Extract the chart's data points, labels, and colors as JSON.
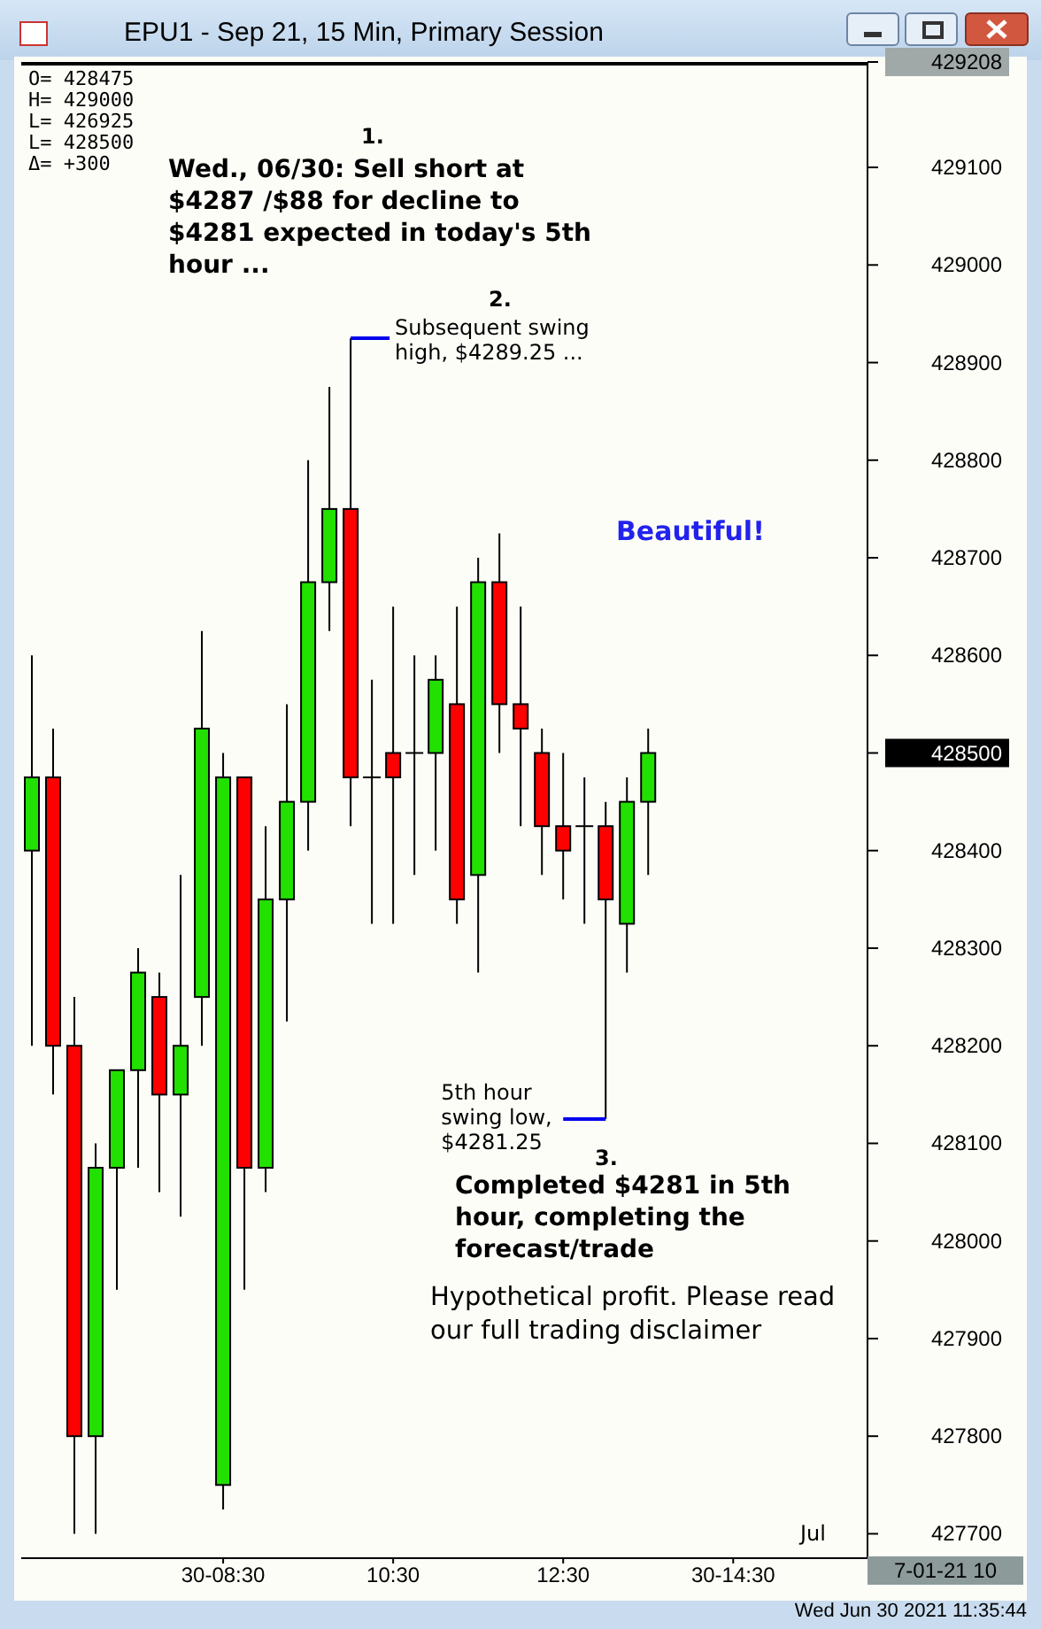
{
  "chart_data": {
    "type": "candlestick",
    "title": "EPU1 - Sep 21, 15 Min, Primary Session",
    "x": [
      6.25,
      6.5,
      6.75,
      7,
      7.25,
      7.5,
      7.75,
      8,
      8.25,
      8.5,
      8.75,
      9,
      9.25,
      9.5,
      9.75,
      10,
      10.25,
      10.5,
      10.75,
      11,
      11.25,
      11.5,
      11.75,
      12,
      12.25,
      12.5,
      12.75,
      13,
      13.25,
      13.5
    ],
    "ohlc": [
      [
        428400,
        428600,
        428200,
        428475
      ],
      [
        428475,
        428525,
        428150,
        428200
      ],
      [
        428200,
        428250,
        427700,
        427800
      ],
      [
        427800,
        428100,
        427700,
        428075
      ],
      [
        428075,
        428175,
        427950,
        428175
      ],
      [
        428175,
        428300,
        428075,
        428275
      ],
      [
        428250,
        428275,
        428050,
        428150
      ],
      [
        428150,
        428375,
        428025,
        428200
      ],
      [
        428250,
        428625,
        428200,
        428525
      ],
      [
        427750,
        428500,
        427725,
        428475
      ],
      [
        428475,
        428475,
        427950,
        428075
      ],
      [
        428075,
        428425,
        428050,
        428350
      ],
      [
        428350,
        428550,
        428225,
        428450
      ],
      [
        428450,
        428800,
        428400,
        428675
      ],
      [
        428675,
        428875,
        428625,
        428750
      ],
      [
        428750,
        428925,
        428425,
        428475
      ],
      [
        428475,
        428575,
        428325,
        428475
      ],
      [
        428500,
        428650,
        428325,
        428475
      ],
      [
        428500,
        428600,
        428375,
        428500
      ],
      [
        428500,
        428600,
        428400,
        428575
      ],
      [
        428550,
        428650,
        428325,
        428350
      ],
      [
        428375,
        428700,
        428275,
        428675
      ],
      [
        428675,
        428725,
        428500,
        428550
      ],
      [
        428550,
        428650,
        428425,
        428525
      ],
      [
        428500,
        428525,
        428375,
        428425
      ],
      [
        428425,
        428500,
        428350,
        428400
      ],
      [
        428425,
        428475,
        428325,
        428425
      ],
      [
        428425,
        428450,
        428125,
        428350
      ],
      [
        428325,
        428475,
        428275,
        428450
      ],
      [
        428450,
        428525,
        428375,
        428500
      ]
    ],
    "colors": [
      "#22e000",
      "#ff0000",
      "#ff0000",
      "#22e000",
      "#22e000",
      "#22e000",
      "#ff0000",
      "#22e000",
      "#22e000",
      "#22e000",
      "#ff0000",
      "#22e000",
      "#22e000",
      "#22e000",
      "#22e000",
      "#ff0000",
      "#000000",
      "#ff0000",
      "#000000",
      "#22e000",
      "#ff0000",
      "#22e000",
      "#ff0000",
      "#ff0000",
      "#ff0000",
      "#ff0000",
      "#000000",
      "#ff0000",
      "#22e000",
      "#22e000"
    ],
    "xlim": [
      6.125,
      16.08
    ],
    "xticks": [
      {
        "value": 8.5,
        "label": "30-08:30"
      },
      {
        "value": 10.5,
        "label": "10:30"
      },
      {
        "value": 12.5,
        "label": "12:30"
      },
      {
        "value": 14.5,
        "label": "30-14:30"
      }
    ],
    "ylim": [
      427675,
      429208
    ],
    "yticks": [
      427700,
      427800,
      427900,
      428000,
      428100,
      428200,
      428300,
      428400,
      428500,
      428600,
      428700,
      428800,
      428900,
      429000,
      429100,
      429208
    ],
    "annotations": [
      "O= 428475",
      "H= 429000",
      "L= 426925",
      "L= 428500",
      "Δ= +300",
      "1.",
      "Wed., 06/30: Sell short at $4287 /$88 for decline to $4281 expected in today's 5th hour ...",
      "2.",
      {
        "text": "Subsequent swing high, $4289.25 ...",
        "x": 10,
        "y": 428925
      },
      "Beautiful!",
      {
        "text": "5th hour swing low, $4281.25",
        "x": 13,
        "y": 428125
      },
      "3.",
      "Completed $4281 in 5th hour, completing the forecast/trade",
      "Hypothetical profit. Please read our full trading disclaimer",
      "Jul",
      "7-01-21 10",
      "Wed Jun 30 2021 11:35:44"
    ]
  }
}
